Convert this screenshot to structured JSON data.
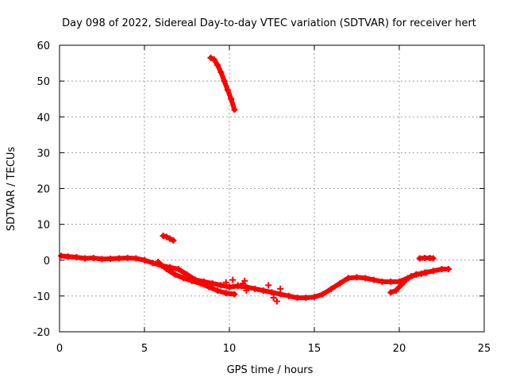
{
  "chart_data": {
    "type": "scatter",
    "title": "Day 098 of 2022, Sidereal Day-to-day VTEC variation (SDTVAR) for receiver hert",
    "xlabel": "GPS time / hours",
    "ylabel": "SDTVAR / TECUs",
    "xlim": [
      0,
      25
    ],
    "ylim": [
      -20,
      60
    ],
    "xticks": [
      "0",
      "5",
      "10",
      "15",
      "20",
      "25"
    ],
    "yticks": [
      "-20",
      "-10",
      "0",
      "10",
      "20",
      "30",
      "40",
      "50",
      "60"
    ],
    "grid": true,
    "marker": "+",
    "color": "#ff0000",
    "series": [
      {
        "name": "main-trace-upper",
        "x": [
          0.1,
          0.5,
          1,
          1.5,
          2,
          2.5,
          3,
          3.5,
          4,
          4.5,
          5,
          5.5,
          6,
          6.5,
          7,
          7.5,
          8,
          8.5,
          9,
          9.5,
          10,
          10.5,
          11,
          11.5,
          12,
          12.5,
          13,
          13.5,
          14,
          14.5,
          15,
          15.5,
          16,
          16.5,
          17,
          17.5,
          18,
          18.5,
          19,
          19.5,
          20,
          20.5,
          21,
          21.5,
          22,
          22.5,
          22.9
        ],
        "y": [
          1.2,
          1,
          0.8,
          0.5,
          0.6,
          0.3,
          0.4,
          0.5,
          0.6,
          0.5,
          0,
          -0.8,
          -1.5,
          -2,
          -2.5,
          -4,
          -5.5,
          -6,
          -6.5,
          -7,
          -7.5,
          -7.2,
          -7.5,
          -8,
          -8.5,
          -9,
          -9.5,
          -10,
          -10.5,
          -10.5,
          -10.3,
          -9.5,
          -8,
          -6.5,
          -5,
          -4.8,
          -5,
          -5.5,
          -6,
          -6,
          -6,
          -5,
          -4,
          -3.5,
          -3,
          -2.5,
          -2.5
        ]
      },
      {
        "name": "main-trace-lower",
        "x": [
          5.8,
          6.3,
          6.8,
          7.3,
          7.8,
          8.3,
          8.8,
          9.3,
          9.8,
          10.3
        ],
        "y": [
          -0.5,
          -2.5,
          -4,
          -5,
          -5.8,
          -6.5,
          -7.5,
          -8.5,
          -9.2,
          -9.5
        ]
      },
      {
        "name": "late-trace-lower",
        "x": [
          19.5,
          19.8,
          20.1,
          20.4,
          20.7,
          21,
          21.3,
          21.6
        ],
        "y": [
          -9,
          -8.5,
          -7,
          -5.5,
          -4.5,
          -4,
          -3.8,
          -3.5
        ]
      },
      {
        "name": "high-arc",
        "x": [
          8.9,
          9.1,
          9.3,
          9.5,
          9.7,
          9.9,
          10.1,
          10.3
        ],
        "y": [
          56.5,
          56,
          54.5,
          52.5,
          50,
          47.5,
          45,
          42
        ]
      },
      {
        "name": "small-segment-6h",
        "x": [
          6.1,
          6.3,
          6.5,
          6.7
        ],
        "y": [
          6.8,
          6.5,
          6,
          5.5
        ]
      },
      {
        "name": "small-segment-21h",
        "x": [
          21.2,
          21.5,
          21.8,
          22
        ],
        "y": [
          0.5,
          0.6,
          0.6,
          0.5
        ]
      },
      {
        "name": "scatter-clusters",
        "x": [
          10.8,
          11,
          12.3,
          12.6,
          12.8,
          13,
          9.8,
          10.2,
          10.5,
          10.9
        ],
        "y": [
          -6.5,
          -8.5,
          -7,
          -10.5,
          -11.5,
          -8,
          -6.2,
          -5.5,
          -7,
          -5.8
        ]
      }
    ]
  }
}
